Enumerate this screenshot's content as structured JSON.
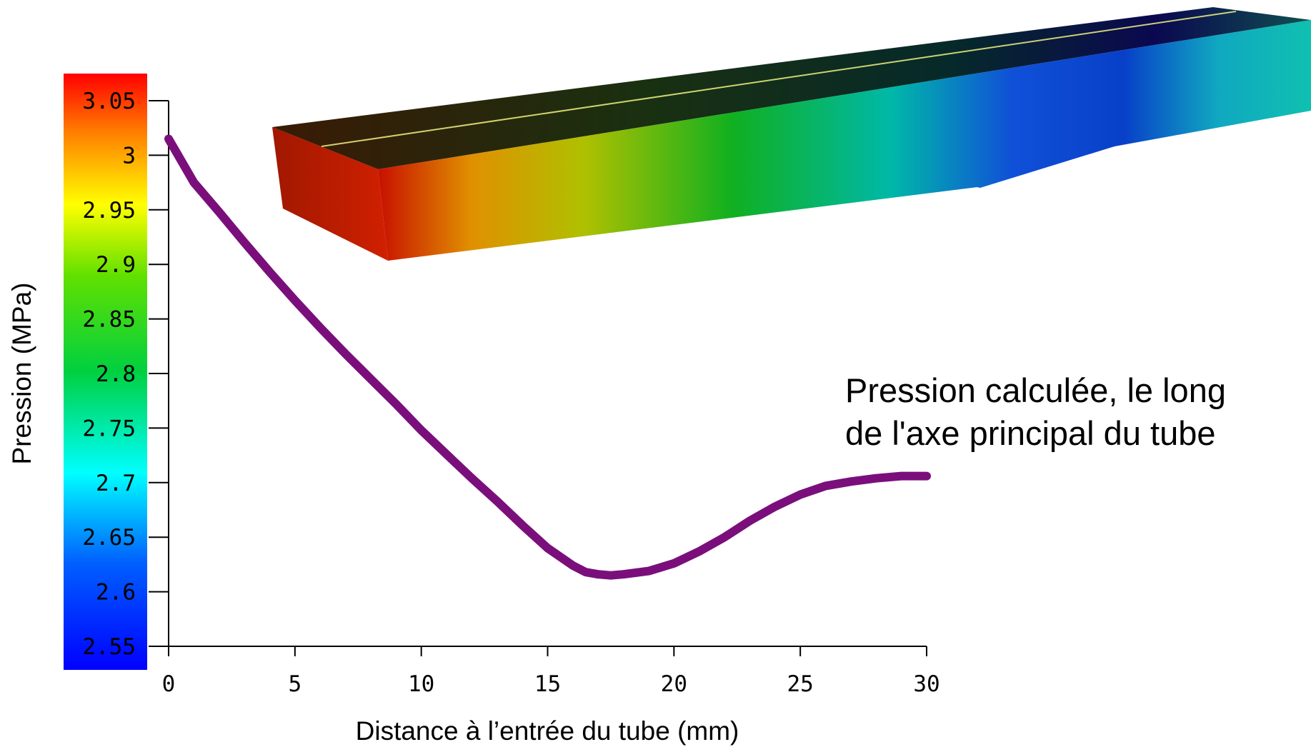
{
  "chart_data": {
    "type": "line",
    "title": "",
    "xlabel": "Distance à l’entrée du tube (mm)",
    "ylabel": "Pression (MPa)",
    "xlim": [
      0,
      30
    ],
    "ylim": [
      2.55,
      3.05
    ],
    "x_ticks": [
      "0",
      "5",
      "10",
      "15",
      "20",
      "25",
      "30"
    ],
    "y_ticks": [
      "3.05",
      "3",
      "2.95",
      "2.9",
      "2.85",
      "2.8",
      "2.75",
      "2.7",
      "2.65",
      "2.6",
      "2.55"
    ],
    "grid": false,
    "legend": "none",
    "colormap": "jet (blue → cyan → green → yellow → red)",
    "annotation": {
      "lines": [
        "Pression calculée, le long",
        "de l'axe principal du tube"
      ]
    },
    "series": [
      {
        "color": "#7a0f7c",
        "x": [
          0,
          0.5,
          1,
          2,
          3,
          4,
          5,
          6,
          7,
          8,
          9,
          10,
          11,
          12,
          13,
          14,
          15,
          16,
          16.5,
          17,
          17.5,
          18,
          19,
          20,
          21,
          22,
          23,
          24,
          25,
          26,
          27,
          28,
          29,
          30
        ],
        "y": [
          3.015,
          2.995,
          2.975,
          2.948,
          2.92,
          2.893,
          2.867,
          2.842,
          2.818,
          2.795,
          2.772,
          2.748,
          2.726,
          2.704,
          2.683,
          2.661,
          2.64,
          2.624,
          2.618,
          2.616,
          2.615,
          2.616,
          2.619,
          2.626,
          2.637,
          2.65,
          2.665,
          2.678,
          2.689,
          2.697,
          2.701,
          2.704,
          2.706,
          2.706
        ]
      }
    ]
  }
}
